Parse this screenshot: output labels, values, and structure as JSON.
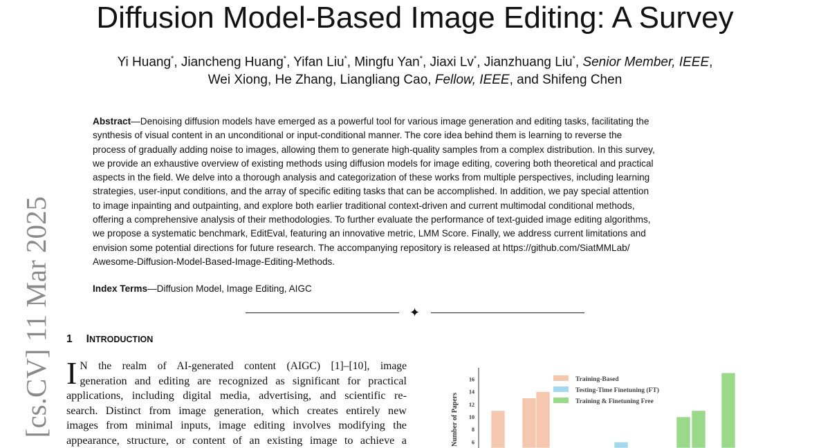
{
  "paper": {
    "title": "Diffusion Model-Based Image Editing: A Survey",
    "authors_line1": "Yi Huang*, Jiancheng Huang*, Yifan Liu*, Mingfu Yan*, Jiaxi Lv*, Jianzhuang Liu*, Senior Member, IEEE,",
    "authors_line2": "Wei Xiong, He Zhang, Liangliang Cao, Fellow, IEEE, and Shifeng Chen",
    "abstract_label": "Abstract",
    "abstract_lines": [
      "—Denoising diffusion models have emerged as a powerful tool for various image generation and editing tasks, facilitating the",
      "synthesis of visual content in an unconditional or input-conditional manner. The core idea behind them is learning to reverse the",
      "process of gradually adding noise to images, allowing them to generate high-quality samples from a complex distribution. In this survey,",
      "we provide an exhaustive overview of existing methods using diffusion models for image editing, covering both theoretical and practical",
      "aspects in the field. We delve into a thorough analysis and categorization of these works from multiple perspectives, including learning",
      "strategies, user-input conditions, and the array of specific editing tasks that can be accomplished. In addition, we pay special attention",
      "to image inpainting and outpainting, and explore both earlier traditional context-driven and current multimodal conditional methods,",
      "offering a comprehensive analysis of their methodologies. To further evaluate the performance of text-guided image editing algorithms,",
      "we propose a systematic benchmark, EditEval, featuring an innovative metric, LMM Score. Finally, we address current limitations and",
      "envision some potential directions for future research. The accompanying repository is released at https://github.com/SiatMMLab/",
      "Awesome-Diffusion-Model-Based-Image-Editing-Methods."
    ],
    "index_label": "Index Terms",
    "index_terms": "—Diffusion Model, Image Editing, AIGC",
    "section_number": "1",
    "section_title": "Introduction",
    "dropcap": "I",
    "intro_first": "N the realm of AI-generated content (AIGC) [1]–[10], image",
    "intro_lines": [
      "generation and editing are recognized as significant for practical",
      "applications, including digital media, advertising, and scientific re-",
      "search. Distinct from image generation, which creates entirely new",
      "images from minimal inputs, image editing involves modifying the",
      "appearance, structure, or content of an existing image to achieve a"
    ],
    "arxiv_stamp": "[cs.CV]  11 Mar 2025"
  },
  "chart_data": {
    "type": "bar",
    "ylabel": "Number of Papers",
    "yticks": [
      6,
      8,
      10,
      12,
      14,
      16
    ],
    "ylim": [
      0,
      17
    ],
    "legend_position": "top",
    "legend": [
      {
        "name": "Training-Based",
        "color": "#f4c7ae"
      },
      {
        "name": "Testing-Time Finetuning (FT)",
        "color": "#a3d8ef"
      },
      {
        "name": "Training & Finetuning Free",
        "color": "#9ad88a"
      }
    ],
    "bars": [
      {
        "series": "Training-Based",
        "value": 11
      },
      {
        "series": "Training-Based",
        "value": 13
      },
      {
        "series": "Training-Based",
        "value": 14
      },
      {
        "series": "Testing-Time Finetuning (FT)",
        "value": 6
      },
      {
        "series": "Training & Finetuning Free",
        "value": 10
      },
      {
        "series": "Training & Finetuning Free",
        "value": 11
      },
      {
        "series": "Training & Finetuning Free",
        "value": 17
      }
    ]
  }
}
